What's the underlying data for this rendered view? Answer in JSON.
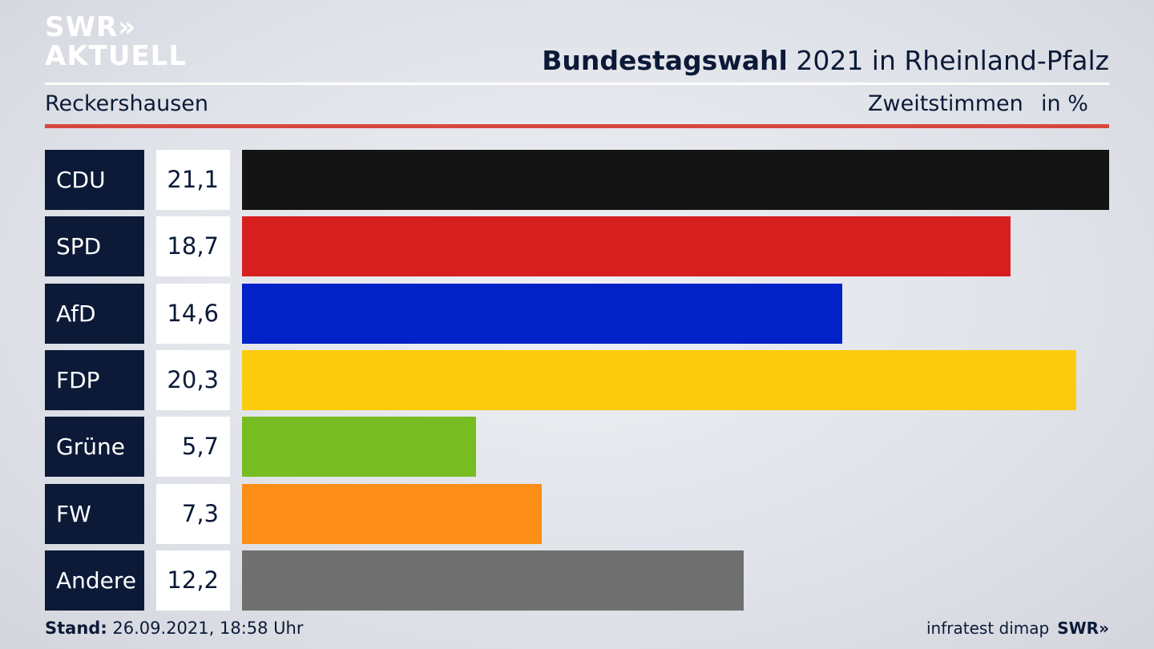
{
  "logo": {
    "line1": "SWR»",
    "line2": "AKTUELL"
  },
  "header": {
    "title_bold": "Bundestagswahl",
    "title_rest": " 2021 in Rheinland-Pfalz",
    "region": "Reckershausen",
    "measure": "Zweitstimmen",
    "unit": "in %"
  },
  "chart_data": {
    "type": "bar",
    "orientation": "horizontal",
    "categories": [
      "CDU",
      "SPD",
      "AfD",
      "FDP",
      "Grüne",
      "FW",
      "Andere"
    ],
    "values": [
      21.1,
      18.7,
      14.6,
      20.3,
      5.7,
      7.3,
      12.2
    ],
    "value_labels": [
      "21,1",
      "18,7",
      "14,6",
      "20,3",
      "5,7",
      "7,3",
      "12,2"
    ],
    "colors": [
      "#141414",
      "#d81f20",
      "#0022c6",
      "#fdcb0d",
      "#77bd22",
      "#fd8e18",
      "#707070"
    ],
    "xlim": [
      0,
      21.1
    ],
    "grid": false,
    "legend": "none"
  },
  "footer": {
    "stand_label": "Stand:",
    "stand_value": " 26.09.2021, 18:58 Uhr",
    "source": "infratest dimap",
    "brand": "SWR»"
  }
}
